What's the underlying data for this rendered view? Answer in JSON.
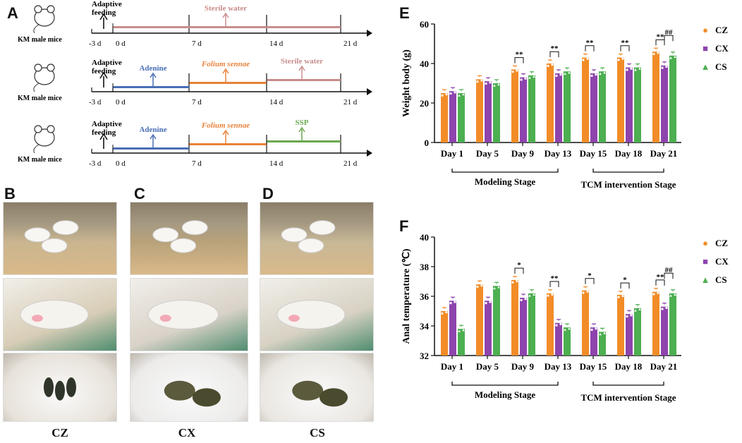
{
  "panel_labels": {
    "a": "A",
    "b": "B",
    "c": "C",
    "d": "D",
    "e": "E",
    "f": "F"
  },
  "timeline": {
    "mouse_label": "KM male mice",
    "adaptive": [
      "Adaptive",
      "feeding"
    ],
    "ticks": [
      "-3 d",
      "0 d",
      "7 d",
      "14 d",
      "21 d"
    ],
    "rows": [
      {
        "segments": [
          {
            "label": "Sterile water",
            "color": "#c98c8c"
          }
        ]
      },
      {
        "segments": [
          {
            "label": "Adenine",
            "color": "#4a6fb5"
          },
          {
            "label": "Folium sennae",
            "color": "#e8823a"
          },
          {
            "label": "Sterile water",
            "color": "#c98c8c"
          }
        ]
      },
      {
        "segments": [
          {
            "label": "Adenine",
            "color": "#4a6fb5"
          },
          {
            "label": "Folium sennae",
            "color": "#e8823a"
          },
          {
            "label": "SSP",
            "color": "#6aa84f"
          }
        ]
      }
    ]
  },
  "photos": {
    "captions": [
      "CZ",
      "CX",
      "CS"
    ]
  },
  "colors": {
    "CZ": "#f28c28",
    "CX": "#8e44ad",
    "CS": "#4caf50"
  },
  "chart_data": [
    {
      "type": "bar",
      "ylabel": "Weight body (g)",
      "ylim": [
        0,
        60
      ],
      "yticks": [
        0,
        20,
        40,
        60
      ],
      "categories": [
        "Day 1",
        "Day 5",
        "Day 9",
        "Day 13",
        "Day 15",
        "Day 18",
        "Day 21"
      ],
      "series": [
        {
          "name": "CZ",
          "marker": "●",
          "values": [
            25,
            32,
            37,
            40,
            43,
            43,
            46
          ]
        },
        {
          "name": "CX",
          "marker": "■",
          "values": [
            26,
            31,
            33,
            35,
            35,
            38,
            39
          ]
        },
        {
          "name": "CS",
          "marker": "▲",
          "values": [
            25,
            30,
            34,
            36,
            36,
            38,
            44
          ]
        }
      ],
      "significance": [
        {
          "cat": "Day 9",
          "pair": "CZ-CX",
          "label": "**"
        },
        {
          "cat": "Day 13",
          "pair": "CZ-CX",
          "label": "**"
        },
        {
          "cat": "Day 15",
          "pair": "CZ-CX",
          "label": "**"
        },
        {
          "cat": "Day 18",
          "pair": "CZ-CX",
          "label": "**"
        },
        {
          "cat": "Day 21",
          "pair": "CZ-CX",
          "label": "**"
        },
        {
          "cat": "Day 21",
          "pair": "CX-CS",
          "label": "##"
        }
      ],
      "stages": [
        {
          "label": "Modeling Stage",
          "from": "Day 1",
          "to": "Day 13"
        },
        {
          "label": "TCM intervention Stage",
          "from": "Day 15",
          "to": "Day 21"
        }
      ]
    },
    {
      "type": "bar",
      "ylabel": "Anal temperature (℃)",
      "ylim": [
        32,
        40
      ],
      "yticks": [
        32,
        34,
        36,
        38,
        40
      ],
      "categories": [
        "Day 1",
        "Day 5",
        "Day 9",
        "Day 13",
        "Day 15",
        "Day 18",
        "Day 21"
      ],
      "series": [
        {
          "name": "CZ",
          "marker": "●",
          "values": [
            35.0,
            36.8,
            37.1,
            36.2,
            36.4,
            36.1,
            36.3
          ]
        },
        {
          "name": "CX",
          "marker": "■",
          "values": [
            35.7,
            35.7,
            35.9,
            34.2,
            33.9,
            34.8,
            35.3
          ]
        },
        {
          "name": "CS",
          "marker": "▲",
          "values": [
            33.8,
            36.7,
            36.2,
            33.9,
            33.6,
            35.2,
            36.2
          ]
        }
      ],
      "significance": [
        {
          "cat": "Day 9",
          "pair": "CZ-CX",
          "label": "*"
        },
        {
          "cat": "Day 13",
          "pair": "CZ-CX",
          "label": "**"
        },
        {
          "cat": "Day 15",
          "pair": "CZ-CX",
          "label": "*"
        },
        {
          "cat": "Day 18",
          "pair": "CZ-CX",
          "label": "*"
        },
        {
          "cat": "Day 21",
          "pair": "CZ-CX",
          "label": "**"
        },
        {
          "cat": "Day 21",
          "pair": "CX-CS",
          "label": "##"
        }
      ],
      "stages": [
        {
          "label": "Modeling Stage",
          "from": "Day 1",
          "to": "Day 13"
        },
        {
          "label": "TCM intervention Stage",
          "from": "Day 15",
          "to": "Day 21"
        }
      ]
    }
  ]
}
